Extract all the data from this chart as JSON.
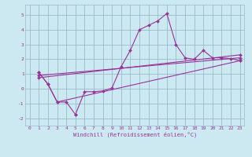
{
  "xlabel": "Windchill (Refroidissement éolien,°C)",
  "background_color": "#cce8f0",
  "grid_color": "#99bbcc",
  "line_color": "#993399",
  "xlim": [
    -0.5,
    23.5
  ],
  "ylim": [
    -2.5,
    5.7
  ],
  "yticks": [
    -2,
    -1,
    0,
    1,
    2,
    3,
    4,
    5
  ],
  "xticks": [
    0,
    1,
    2,
    3,
    4,
    5,
    6,
    7,
    8,
    9,
    10,
    11,
    12,
    13,
    14,
    15,
    16,
    17,
    18,
    19,
    20,
    21,
    22,
    23
  ],
  "line1_x": [
    1,
    2,
    3,
    4,
    5,
    5,
    6,
    7,
    8,
    9,
    10,
    11,
    12,
    13,
    14,
    15,
    16,
    17,
    18,
    19,
    20,
    21,
    22,
    23
  ],
  "line1_y": [
    1.1,
    0.3,
    -0.9,
    -0.9,
    -1.75,
    -1.75,
    -0.2,
    -0.2,
    -0.15,
    0.05,
    1.5,
    2.6,
    4.0,
    4.3,
    4.6,
    5.1,
    3.0,
    2.1,
    2.0,
    2.6,
    2.1,
    2.1,
    2.05,
    1.9
  ],
  "line2_x": [
    1,
    2,
    3,
    23
  ],
  "line2_y": [
    1.1,
    0.3,
    -0.9,
    1.9
  ],
  "line3_x": [
    1,
    23
  ],
  "line3_y": [
    0.75,
    2.3
  ],
  "line4_x": [
    1,
    23
  ],
  "line4_y": [
    0.9,
    2.1
  ],
  "tick_fontsize": 4.5,
  "xlabel_fontsize": 5.0,
  "marker_size": 2.0,
  "line_width": 0.8
}
